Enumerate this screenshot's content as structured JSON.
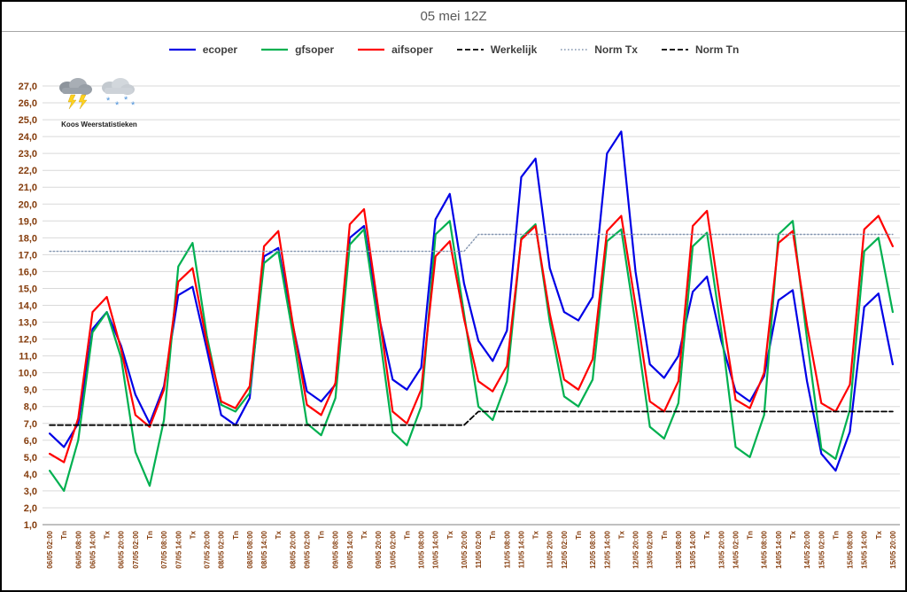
{
  "title": "05 mei 12Z",
  "logo": {
    "caption": "Koos Weerstatistieken"
  },
  "colors": {
    "title_text": "#595959",
    "axis_labels": "#843c0c",
    "gridline": "#d9d9d9",
    "axis_line": "#808080",
    "legend_text": "#3f3f3f"
  },
  "chart_data": {
    "type": "line",
    "title": "05 mei 12Z",
    "xlabel": "",
    "ylabel": "",
    "ylim": [
      1,
      27
    ],
    "ytick_step": 1,
    "grid": true,
    "legend_position": "top",
    "y_tick_labels": [
      "27,0",
      "26,0",
      "25,0",
      "24,0",
      "23,0",
      "22,0",
      "21,0",
      "20,0",
      "19,0",
      "18,0",
      "17,0",
      "16,0",
      "15,0",
      "14,0",
      "13,0",
      "12,0",
      "11,0",
      "10,0",
      "9,0",
      "8,0",
      "7,0",
      "6,0",
      "5,0",
      "4,0",
      "3,0",
      "2,0",
      "1,0"
    ],
    "x_labels": [
      "06/05 02:00",
      "Tn",
      "06/05 08:00",
      "06/05 14:00",
      "Tx",
      "06/05 20:00",
      "07/05 02:00",
      "Tn",
      "07/05 08:00",
      "07/05 14:00",
      "Tx",
      "07/05 20:00",
      "08/05 02:00",
      "Tn",
      "08/05 08:00",
      "08/05 14:00",
      "Tx",
      "08/05 20:00",
      "09/05 02:00",
      "Tn",
      "09/05 08:00",
      "09/05 14:00",
      "Tx",
      "09/05 20:00",
      "10/05 02:00",
      "Tn",
      "10/05 08:00",
      "10/05 14:00",
      "Tx",
      "10/05 20:00",
      "11/05 02:00",
      "Tn",
      "11/05 08:00",
      "11/05 14:00",
      "Tx",
      "11/05 20:00",
      "12/05 02:00",
      "Tn",
      "12/05 08:00",
      "12/05 14:00",
      "Tx",
      "12/05 20:00",
      "13/05 02:00",
      "Tn",
      "13/05 08:00",
      "13/05 14:00",
      "Tx",
      "13/05 20:00",
      "14/05 02:00",
      "Tn",
      "14/05 08:00",
      "14/05 14:00",
      "Tx",
      "14/05 20:00",
      "15/05 02:00",
      "Tn",
      "15/05 08:00",
      "15/05 14:00",
      "Tx",
      "15/05 20:00"
    ],
    "series": [
      {
        "id": "ecoper",
        "name": "ecoper",
        "color": "#0000e6",
        "dash": "solid",
        "width": 2.2,
        "values": [
          6.4,
          5.6,
          7.0,
          12.6,
          13.6,
          11.6,
          8.7,
          7.0,
          9.2,
          14.6,
          15.1,
          11.4,
          7.5,
          6.9,
          8.5,
          16.9,
          17.4,
          12.9,
          8.9,
          8.3,
          9.3,
          18.0,
          18.7,
          13.5,
          9.6,
          9.0,
          10.3,
          19.1,
          20.6,
          15.3,
          11.9,
          10.7,
          12.5,
          21.6,
          22.7,
          16.2,
          13.6,
          13.1,
          14.5,
          23.0,
          24.3,
          16.0,
          10.5,
          9.7,
          11.0,
          14.8,
          15.7,
          11.9,
          8.9,
          8.3,
          9.8,
          14.3,
          14.9,
          9.5,
          5.2,
          4.2,
          6.5,
          13.9,
          14.7,
          10.5
        ]
      },
      {
        "id": "gfsoper",
        "name": "gfsoper",
        "color": "#00b050",
        "dash": "solid",
        "width": 2.2,
        "values": [
          4.2,
          3.0,
          6.0,
          12.4,
          13.6,
          10.9,
          5.3,
          3.3,
          7.2,
          16.3,
          17.7,
          12.2,
          8.1,
          7.7,
          8.8,
          16.5,
          17.2,
          12.4,
          7.0,
          6.3,
          8.5,
          17.6,
          18.5,
          12.8,
          6.5,
          5.7,
          8.0,
          18.2,
          19.0,
          13.5,
          8.0,
          7.2,
          9.5,
          18.0,
          18.8,
          13.0,
          8.6,
          8.0,
          9.6,
          17.8,
          18.5,
          12.9,
          6.8,
          6.1,
          8.2,
          17.5,
          18.3,
          12.5,
          5.6,
          5.0,
          7.5,
          18.2,
          19.0,
          12.0,
          5.5,
          4.9,
          7.8,
          17.2,
          18.0,
          13.6
        ]
      },
      {
        "id": "aifsoper",
        "name": "aifsoper",
        "color": "#ff0000",
        "dash": "solid",
        "width": 2.2,
        "values": [
          5.2,
          4.7,
          7.3,
          13.6,
          14.5,
          11.4,
          7.5,
          6.8,
          9.0,
          15.4,
          16.2,
          11.8,
          8.3,
          7.9,
          9.2,
          17.5,
          18.4,
          13.0,
          8.1,
          7.5,
          9.4,
          18.8,
          19.7,
          13.8,
          7.7,
          7.0,
          9.0,
          16.9,
          17.8,
          13.2,
          9.5,
          8.9,
          10.4,
          17.9,
          18.7,
          13.5,
          9.6,
          9.0,
          10.8,
          18.4,
          19.3,
          14.0,
          8.3,
          7.7,
          9.5,
          18.7,
          19.6,
          13.8,
          8.4,
          7.9,
          10.0,
          17.7,
          18.4,
          12.8,
          8.2,
          7.7,
          9.3,
          18.5,
          19.3,
          17.5
        ]
      },
      {
        "id": "werkelijk",
        "name": "Werkelijk",
        "color": "#000000",
        "dash": "dashed",
        "width": 1.8,
        "values": []
      },
      {
        "id": "norm-tx",
        "name": "Norm Tx",
        "color": "#8496b0",
        "dash": "dotted",
        "width": 1.4,
        "values": [
          17.2,
          17.2,
          17.2,
          17.2,
          17.2,
          17.2,
          17.2,
          17.2,
          17.2,
          17.2,
          17.2,
          17.2,
          17.2,
          17.2,
          17.2,
          17.2,
          17.2,
          17.2,
          17.2,
          17.2,
          17.2,
          17.2,
          17.2,
          17.2,
          17.2,
          17.2,
          17.2,
          17.2,
          17.2,
          17.2,
          18.2,
          18.2,
          18.2,
          18.2,
          18.2,
          18.2,
          18.2,
          18.2,
          18.2,
          18.2,
          18.2,
          18.2,
          18.2,
          18.2,
          18.2,
          18.2,
          18.2,
          18.2,
          18.2,
          18.2,
          18.2,
          18.2,
          18.2,
          18.2,
          18.2,
          18.2,
          18.2,
          18.2,
          18.2,
          18.2
        ]
      },
      {
        "id": "norm-tn",
        "name": "Norm Tn",
        "color": "#000000",
        "dash": "dashed",
        "width": 1.8,
        "values": [
          6.9,
          6.9,
          6.9,
          6.9,
          6.9,
          6.9,
          6.9,
          6.9,
          6.9,
          6.9,
          6.9,
          6.9,
          6.9,
          6.9,
          6.9,
          6.9,
          6.9,
          6.9,
          6.9,
          6.9,
          6.9,
          6.9,
          6.9,
          6.9,
          6.9,
          6.9,
          6.9,
          6.9,
          6.9,
          6.9,
          7.7,
          7.7,
          7.7,
          7.7,
          7.7,
          7.7,
          7.7,
          7.7,
          7.7,
          7.7,
          7.7,
          7.7,
          7.7,
          7.7,
          7.7,
          7.7,
          7.7,
          7.7,
          7.7,
          7.7,
          7.7,
          7.7,
          7.7,
          7.7,
          7.7,
          7.7,
          7.7,
          7.7,
          7.7,
          7.7
        ]
      }
    ]
  }
}
